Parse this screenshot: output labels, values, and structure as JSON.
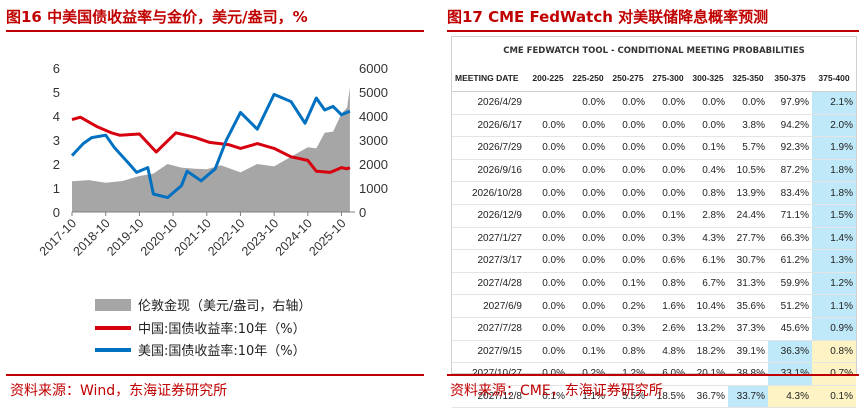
{
  "left": {
    "title": "图16  中美国债收益率与金价，美元/盎司，%",
    "source": "资料来源：Wind，东海证券研究所",
    "chart_data": {
      "type": "line",
      "x_tick_labels": [
        "2017-10",
        "2018-10",
        "2019-10",
        "2020-10",
        "2021-10",
        "2022-10",
        "2023-10",
        "2024-10",
        "2025-10"
      ],
      "y_left_ticks": [
        0,
        1,
        2,
        3,
        4,
        5,
        6
      ],
      "y_right_ticks": [
        0,
        1000,
        2000,
        3000,
        4000,
        5000,
        6000
      ],
      "ylim_left": [
        0,
        6
      ],
      "ylim_right": [
        0,
        6000
      ],
      "legend_position": "bottom",
      "series": [
        {
          "name": "伦敦金现（美元/盎司，右轴）",
          "type": "area",
          "axis": "right",
          "color": "#a6a6a6",
          "x": [
            "2017-10",
            "2018-04",
            "2018-10",
            "2019-04",
            "2019-10",
            "2020-03",
            "2020-08",
            "2021-01",
            "2021-06",
            "2021-10",
            "2022-03",
            "2022-10",
            "2023-04",
            "2023-10",
            "2024-04",
            "2024-10",
            "2025-01",
            "2025-04",
            "2025-07",
            "2025-10",
            "2025-12",
            "2026-01"
          ],
          "values": [
            1280,
            1330,
            1220,
            1290,
            1500,
            1600,
            2000,
            1850,
            1800,
            1780,
            1950,
            1650,
            2000,
            1900,
            2300,
            2700,
            2650,
            3300,
            3350,
            4100,
            4350,
            5200
          ]
        },
        {
          "name": "中国:国债收益率:10年（%）",
          "type": "line",
          "axis": "left",
          "color": "#d7000f",
          "x": [
            "2017-10",
            "2018-01",
            "2018-07",
            "2018-12",
            "2019-03",
            "2019-10",
            "2020-04",
            "2020-11",
            "2021-06",
            "2021-11",
            "2022-06",
            "2022-10",
            "2023-04",
            "2023-10",
            "2024-04",
            "2024-10",
            "2025-01",
            "2025-06",
            "2025-10",
            "2025-12",
            "2026-01"
          ],
          "values": [
            3.85,
            3.95,
            3.55,
            3.3,
            3.2,
            3.25,
            2.5,
            3.3,
            3.1,
            2.9,
            2.8,
            2.65,
            2.85,
            2.65,
            2.3,
            2.15,
            1.7,
            1.65,
            1.85,
            1.8,
            1.85
          ]
        },
        {
          "name": "美国:国债收益率:10年（%）",
          "type": "line",
          "axis": "left",
          "color": "#0070c0",
          "x": [
            "2017-10",
            "2018-02",
            "2018-05",
            "2018-10",
            "2019-01",
            "2019-06",
            "2019-09",
            "2020-01",
            "2020-03",
            "2020-08",
            "2021-01",
            "2021-03",
            "2021-08",
            "2022-01",
            "2022-05",
            "2022-10",
            "2023-04",
            "2023-10",
            "2024-04",
            "2024-09",
            "2025-01",
            "2025-04",
            "2025-07",
            "2025-10",
            "2026-01"
          ],
          "values": [
            2.35,
            2.85,
            3.1,
            3.2,
            2.7,
            2.05,
            1.65,
            1.85,
            0.75,
            0.6,
            1.1,
            1.7,
            1.3,
            1.8,
            3.0,
            4.15,
            3.45,
            4.9,
            4.6,
            3.7,
            4.75,
            4.25,
            4.4,
            4.05,
            4.2
          ]
        }
      ]
    }
  },
  "right": {
    "title": "图17  CME FedWatch 对美联储降息概率预测",
    "source": "资料来源：CME，东海证券研究所",
    "tool_header": "CME FEDWATCH TOOL - CONDITIONAL MEETING PROBABILITIES",
    "chart_data": {
      "type": "table",
      "columns": [
        "MEETING DATE",
        "200-225",
        "225-250",
        "250-275",
        "275-300",
        "300-325",
        "325-350",
        "350-375",
        "375-400"
      ],
      "rows": [
        [
          "2026/4/29",
          "",
          "0.0%",
          "0.0%",
          "0.0%",
          "0.0%",
          "0.0%",
          "97.9%",
          "2.1%"
        ],
        [
          "2026/6/17",
          "0.0%",
          "0.0%",
          "0.0%",
          "0.0%",
          "0.0%",
          "3.8%",
          "94.2%",
          "2.0%"
        ],
        [
          "2026/7/29",
          "0.0%",
          "0.0%",
          "0.0%",
          "0.0%",
          "0.1%",
          "5.7%",
          "92.3%",
          "1.9%"
        ],
        [
          "2026/9/16",
          "0.0%",
          "0.0%",
          "0.0%",
          "0.0%",
          "0.4%",
          "10.5%",
          "87.2%",
          "1.8%"
        ],
        [
          "2026/10/28",
          "0.0%",
          "0.0%",
          "0.0%",
          "0.0%",
          "0.8%",
          "13.9%",
          "83.4%",
          "1.8%"
        ],
        [
          "2026/12/9",
          "0.0%",
          "0.0%",
          "0.0%",
          "0.1%",
          "2.8%",
          "24.4%",
          "71.1%",
          "1.5%"
        ],
        [
          "2027/1/27",
          "0.0%",
          "0.0%",
          "0.0%",
          "0.3%",
          "4.3%",
          "27.7%",
          "66.3%",
          "1.4%"
        ],
        [
          "2027/3/17",
          "0.0%",
          "0.0%",
          "0.0%",
          "0.6%",
          "6.1%",
          "30.7%",
          "61.2%",
          "1.3%"
        ],
        [
          "2027/4/28",
          "0.0%",
          "0.0%",
          "0.1%",
          "0.8%",
          "6.7%",
          "31.3%",
          "59.9%",
          "1.2%"
        ],
        [
          "2027/6/9",
          "0.0%",
          "0.0%",
          "0.2%",
          "1.6%",
          "10.4%",
          "35.6%",
          "51.2%",
          "1.1%"
        ],
        [
          "2027/7/28",
          "0.0%",
          "0.0%",
          "0.3%",
          "2.6%",
          "13.2%",
          "37.3%",
          "45.6%",
          "0.9%"
        ],
        [
          "2027/9/15",
          "0.0%",
          "0.1%",
          "0.8%",
          "4.8%",
          "18.2%",
          "39.1%",
          "36.3%",
          "0.8%"
        ],
        [
          "2027/10/27",
          "0.0%",
          "0.2%",
          "1.2%",
          "6.0%",
          "20.1%",
          "38.8%",
          "33.1%",
          "0.7%"
        ],
        [
          "2027/12/8",
          "0.1%",
          "1.1%",
          "5.5%",
          "18.5%",
          "36.7%",
          "33.7%",
          "4.3%",
          "0.1%"
        ]
      ],
      "highlights": {
        "blue_color": "#bfe9f8",
        "yellow_color": "#fdf3c4",
        "blue_cells": [
          [
            0,
            7
          ],
          [
            1,
            7
          ],
          [
            2,
            7
          ],
          [
            3,
            7
          ],
          [
            4,
            7
          ],
          [
            5,
            7
          ],
          [
            6,
            7
          ],
          [
            7,
            7
          ],
          [
            8,
            7
          ],
          [
            9,
            7
          ],
          [
            10,
            7
          ],
          [
            11,
            6
          ],
          [
            12,
            6
          ],
          [
            13,
            5
          ]
        ],
        "yellow_cells": [
          [
            11,
            7
          ],
          [
            12,
            7
          ],
          [
            13,
            6
          ],
          [
            13,
            7
          ]
        ]
      }
    }
  },
  "colors": {
    "accent": "#c00000",
    "gold": "#a6a6a6",
    "china": "#d7000f",
    "us": "#0070c0"
  }
}
